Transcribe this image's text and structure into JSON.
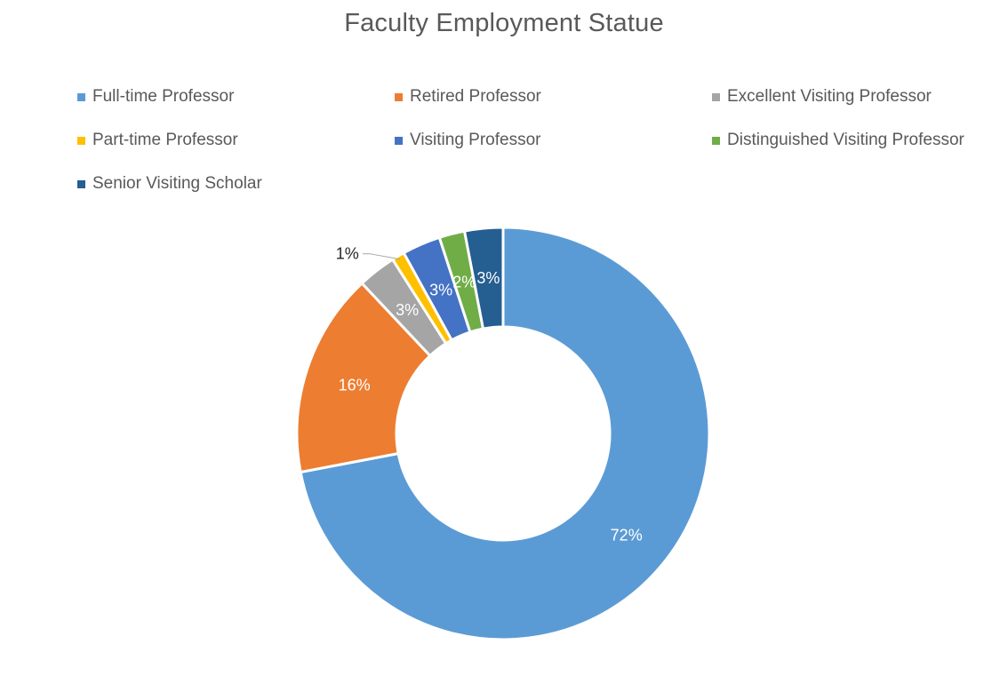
{
  "chart_data": {
    "type": "pie",
    "variant": "doughnut",
    "title": "Faculty Employment Statue",
    "legend_position": "top",
    "categories": [
      "Full-time Professor",
      "Retired Professor",
      "Excellent Visiting Professor",
      "Part-time Professor",
      "Visiting Professor",
      "Distinguished Visiting Professor",
      "Senior Visiting Scholar"
    ],
    "values": [
      72,
      16,
      3,
      1,
      3,
      2,
      3
    ],
    "data_labels": [
      "72%",
      "16%",
      "3%",
      "1%",
      "3%",
      "2%",
      "3%"
    ],
    "colors": [
      "#5B9BD5",
      "#ED7D31",
      "#A5A5A5",
      "#FFC000",
      "#4472C4",
      "#70AD47",
      "#255E91"
    ]
  }
}
